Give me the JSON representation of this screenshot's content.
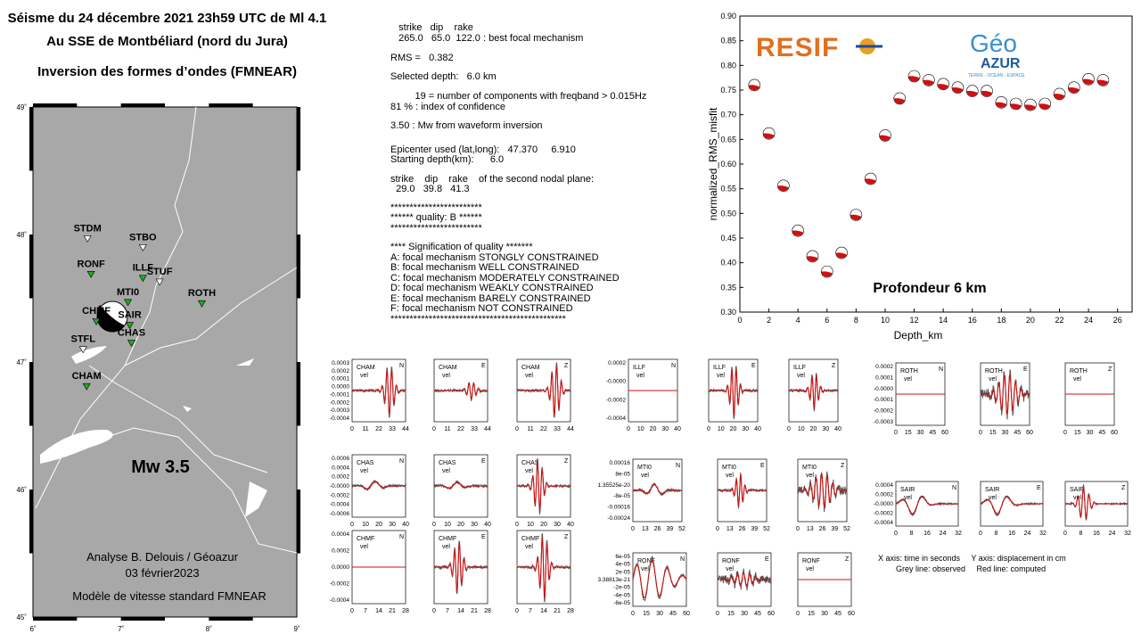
{
  "header": {
    "line1": "Séisme du 24 décembre 2021  23h59 UTC de Ml 4.1",
    "line2": "Au SSE de Montbéliard (nord du Jura)",
    "line3": "Inversion des formes d’ondes (FMNEAR)"
  },
  "map": {
    "lat_labels": [
      "49˚",
      "48˚",
      "47˚",
      "46˚",
      "45˚"
    ],
    "lon_labels": [
      "6˚",
      "7˚",
      "8˚",
      "9˚"
    ],
    "stations": [
      {
        "name": "STDM",
        "lon": 6.62,
        "lat": 47.97,
        "used": false
      },
      {
        "name": "STBO",
        "lon": 7.25,
        "lat": 47.9,
        "used": false
      },
      {
        "name": "RONF",
        "lon": 6.66,
        "lat": 47.69,
        "used": true
      },
      {
        "name": "ILLF",
        "lon": 7.25,
        "lat": 47.66,
        "used": true
      },
      {
        "name": "STUF",
        "lon": 7.44,
        "lat": 47.63,
        "used": false
      },
      {
        "name": "ROTH",
        "lon": 7.92,
        "lat": 47.46,
        "used": true
      },
      {
        "name": "MTI0",
        "lon": 7.08,
        "lat": 47.47,
        "used": true
      },
      {
        "name": "SAIR",
        "lon": 7.1,
        "lat": 47.29,
        "used": true
      },
      {
        "name": "CHAS",
        "lon": 7.12,
        "lat": 47.15,
        "used": true
      },
      {
        "name": "CHMF",
        "lon": 6.72,
        "lat": 47.32,
        "used": true
      },
      {
        "name": "STFL",
        "lon": 6.57,
        "lat": 47.1,
        "used": false
      },
      {
        "name": "CHAM",
        "lon": 6.61,
        "lat": 46.81,
        "used": true
      }
    ],
    "mw_label": "Mw 3.5",
    "credit1": "Analyse B. Delouis / Géoazur",
    "credit2": "03 février2023",
    "credit3": "Modèle  de vitesse standard FMNEAR"
  },
  "info": {
    "l1": "   strike   dip    rake",
    "l2": "   265.0   65.0  122.0 : best focal mechanism",
    "l3": "RMS =   0.382",
    "l4": "Selected depth:   6.0 km",
    "l5": "         19 = number of components with freqband > 0.015Hz",
    "l6": "81 % : index of confidence",
    "l7": "3.50 : Mw from waveform inversion",
    "l8": "Epicenter used (lat,long):   47.370     6.910",
    "l9": "Starting depth(km):      6.0",
    "l10": "strike    dip    rake    of the second nodal plane:",
    "l11": "  29.0   39.8   41.3",
    "l12": "************************",
    "l13": "****** quality: B ******",
    "l14": "************************",
    "l15": "**** Signification of quality *******",
    "l16": "A: focal mechanism STONGLY CONSTRAINED",
    "l17": "B: focal mechanism WELL CONSTRAINED",
    "l18": "C: focal mechanism MODERATELY CONSTRAINED",
    "l19": "D: focal mechanism WEAKLY CONSTRAINED",
    "l20": "E: focal mechanism BARELY CONSTRAINED",
    "l21": "F: focal mechanism NOT CONSTRAINED",
    "l22": "**********************************************"
  },
  "logos": {
    "resif": "RESIF",
    "geo": "Géo",
    "azur": "AZUR",
    "azur_sub": "TERRE - OCEAN - ESPACE"
  },
  "notes": {
    "axes": "X axis: time in seconds     Y axis: displacement in cm",
    "lines": "Grey line: observed     Red line: computed"
  },
  "colors": {
    "observed": "#555555",
    "computed": "#d01010",
    "map_bg": "#a8a8a8",
    "used_station": "#22aa22"
  },
  "chart_data": [
    {
      "type": "scatter",
      "xlabel": "Depth_km",
      "ylabel": "normalized_RMS_misfit",
      "xlim": [
        0,
        27
      ],
      "ylim": [
        0.3,
        0.9
      ],
      "xticks": [
        0,
        2,
        4,
        6,
        8,
        10,
        12,
        14,
        16,
        18,
        20,
        22,
        24,
        26
      ],
      "yticks": [
        0.3,
        0.35,
        0.4,
        0.45,
        0.5,
        0.55,
        0.6,
        0.65,
        0.7,
        0.75,
        0.8,
        0.85,
        0.9
      ],
      "annotation": "Profondeur  6 km",
      "x": [
        1,
        2,
        3,
        4,
        5,
        6,
        7,
        8,
        9,
        10,
        11,
        12,
        13,
        14,
        15,
        16,
        17,
        18,
        19,
        20,
        21,
        22,
        23,
        24,
        25
      ],
      "y": [
        0.76,
        0.662,
        0.556,
        0.465,
        0.413,
        0.382,
        0.42,
        0.497,
        0.57,
        0.658,
        0.733,
        0.778,
        0.77,
        0.762,
        0.755,
        0.748,
        0.748,
        0.725,
        0.722,
        0.72,
        0.722,
        0.742,
        0.755,
        0.772,
        0.77
      ]
    },
    {
      "type": "line",
      "title": "waveform fits",
      "panels": [
        {
          "station": "CHAM",
          "comp": "N",
          "yticks": [
            "0.0003",
            "0.0002",
            "0.0001",
            "0.0000",
            "-0.0001",
            "-0.0002",
            "-0.0003",
            "-0.0004"
          ],
          "xticks": [
            "0",
            "11",
            "22",
            "33",
            "44"
          ],
          "shape": "burst",
          "pos": 0.7,
          "amp": 0.85
        },
        {
          "station": "CHAM",
          "comp": "E",
          "yticks": [],
          "xticks": [
            "0",
            "11",
            "22",
            "33",
            "44"
          ],
          "shape": "burst",
          "pos": 0.7,
          "amp": 0.3
        },
        {
          "station": "CHAM",
          "comp": "Z",
          "yticks": [],
          "xticks": [
            "0",
            "11",
            "22",
            "33",
            "44"
          ],
          "shape": "burst",
          "pos": 0.72,
          "amp": 0.9
        },
        {
          "station": "ILLF",
          "comp": "N",
          "yticks": [
            "0.0002",
            "-0.0000",
            "-0.0002",
            "-0.0004"
          ],
          "xticks": [
            "0",
            "10",
            "20",
            "30",
            "40"
          ],
          "shape": "flat",
          "pos": 0.5,
          "amp": 0
        },
        {
          "station": "ILLF",
          "comp": "E",
          "yticks": [],
          "xticks": [
            "0",
            "10",
            "20",
            "30",
            "40"
          ],
          "shape": "burst",
          "pos": 0.52,
          "amp": 0.9
        },
        {
          "station": "ILLF",
          "comp": "Z",
          "yticks": [],
          "xticks": [
            "0",
            "10",
            "20",
            "30",
            "40"
          ],
          "shape": "burst",
          "pos": 0.52,
          "amp": 0.6
        },
        {
          "station": "ROTH",
          "comp": "N",
          "yticks": [
            "0.0002",
            "0.0001",
            "-0.0000",
            "-0.0001",
            "-0.0002",
            "-0.0003"
          ],
          "xticks": [
            "0",
            "15",
            "30",
            "45",
            "60"
          ],
          "shape": "flat",
          "pos": 0.5,
          "amp": 0
        },
        {
          "station": "ROTH",
          "comp": "E",
          "yticks": [],
          "xticks": [
            "0",
            "15",
            "30",
            "45",
            "60"
          ],
          "shape": "noisy",
          "pos": 0.55,
          "amp": 0.7
        },
        {
          "station": "ROTH",
          "comp": "Z",
          "yticks": [],
          "xticks": [
            "0",
            "15",
            "30",
            "45",
            "60"
          ],
          "shape": "flat",
          "pos": 0.5,
          "amp": 0
        },
        {
          "station": "CHAS",
          "comp": "N",
          "yticks": [
            "0.0006",
            "0.0004",
            "0.0002",
            "-0.0000",
            "-0.0002",
            "-0.0004",
            "-0.0006"
          ],
          "xticks": [
            "0",
            "10",
            "20",
            "30",
            "40"
          ],
          "shape": "smooth",
          "pos": 0.4,
          "amp": 0.15
        },
        {
          "station": "CHAS",
          "comp": "E",
          "yticks": [],
          "xticks": [
            "0",
            "10",
            "20",
            "30",
            "40"
          ],
          "shape": "smooth",
          "pos": 0.4,
          "amp": 0.12
        },
        {
          "station": "CHAS",
          "comp": "Z",
          "yticks": [],
          "xticks": [
            "0",
            "10",
            "20",
            "30",
            "40"
          ],
          "shape": "burst",
          "pos": 0.4,
          "amp": 0.9
        },
        {
          "station": "MTI0",
          "comp": "N",
          "yticks": [
            "0.00016",
            "8e-05",
            "1.35525e-20",
            "-8e-05",
            "-0.00016",
            "-0.00024"
          ],
          "xticks": [
            "0",
            "13",
            "26",
            "39",
            "52"
          ],
          "shape": "smooth",
          "pos": 0.45,
          "amp": 0.2
        },
        {
          "station": "MTI0",
          "comp": "E",
          "yticks": [],
          "xticks": [
            "0",
            "13",
            "26",
            "39",
            "52"
          ],
          "shape": "burst",
          "pos": 0.45,
          "amp": 0.55
        },
        {
          "station": "MTI0",
          "comp": "Z",
          "yticks": [],
          "xticks": [
            "0",
            "13",
            "26",
            "39",
            "52"
          ],
          "shape": "noisy",
          "pos": 0.5,
          "amp": 0.6
        },
        {
          "station": "SAIR",
          "comp": "N",
          "yticks": [
            "0.0004",
            "0.0002",
            "-0.0000",
            "-0.0002",
            "-0.0004"
          ],
          "xticks": [
            "0",
            "8",
            "16",
            "24",
            "32"
          ],
          "shape": "smooth",
          "pos": 0.3,
          "amp": 0.5
        },
        {
          "station": "SAIR",
          "comp": "E",
          "yticks": [],
          "xticks": [
            "0",
            "8",
            "16",
            "24",
            "32"
          ],
          "shape": "smooth",
          "pos": 0.3,
          "amp": 0.5
        },
        {
          "station": "SAIR",
          "comp": "Z",
          "yticks": [],
          "xticks": [
            "0",
            "8",
            "16",
            "24",
            "32"
          ],
          "shape": "burst",
          "pos": 0.3,
          "amp": 0.8
        },
        {
          "station": "CHMF",
          "comp": "N",
          "yticks": [
            "0.0004",
            "0.0002",
            "0.0000",
            "-0.0002",
            "-0.0004"
          ],
          "xticks": [
            "0",
            "7",
            "14",
            "21",
            "28"
          ],
          "shape": "flat",
          "pos": 0.5,
          "amp": 0
        },
        {
          "station": "CHMF",
          "comp": "E",
          "yticks": [],
          "xticks": [
            "0",
            "7",
            "14",
            "21",
            "28"
          ],
          "shape": "burst",
          "pos": 0.45,
          "amp": 0.75
        },
        {
          "station": "CHMF",
          "comp": "Z",
          "yticks": [],
          "xticks": [
            "0",
            "7",
            "14",
            "21",
            "28"
          ],
          "shape": "burst",
          "pos": 0.5,
          "amp": 0.95
        },
        {
          "station": "RONF",
          "comp": "N",
          "yticks": [
            "6e-05",
            "4e-05",
            "2e-05",
            "3.38813e-21",
            "-2e-05",
            "-4e-05",
            "-6e-05"
          ],
          "xticks": [
            "0",
            "15",
            "30",
            "45",
            "60"
          ],
          "shape": "long",
          "pos": 0.5,
          "amp": 0.8
        },
        {
          "station": "RONF",
          "comp": "E",
          "yticks": [],
          "xticks": [
            "0",
            "15",
            "30",
            "45",
            "60"
          ],
          "shape": "noisy",
          "pos": 0.5,
          "amp": 0.3
        },
        {
          "station": "RONF",
          "comp": "Z",
          "yticks": [],
          "xticks": [
            "0",
            "15",
            "30",
            "45",
            "60"
          ],
          "shape": "flat",
          "pos": 0.5,
          "amp": 0
        }
      ],
      "label_vel": "vel"
    }
  ]
}
